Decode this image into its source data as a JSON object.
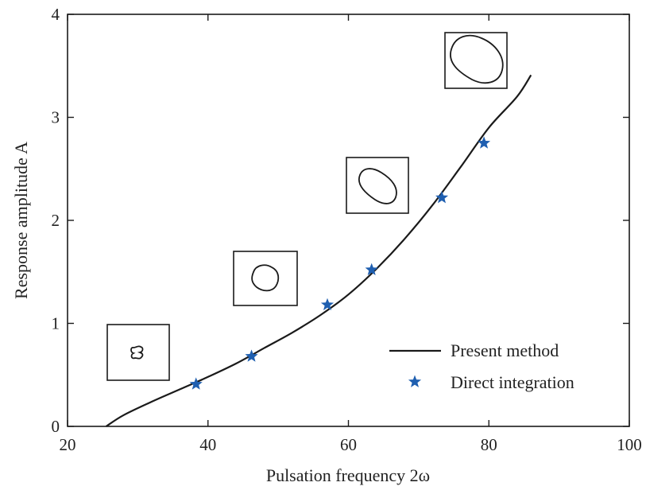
{
  "chart_data": {
    "type": "line",
    "title": "",
    "xlabel": "Pulsation frequency 2ω",
    "ylabel": "Response amplitude A",
    "xlim": [
      20,
      100
    ],
    "ylim": [
      0,
      4
    ],
    "xticks": [
      20,
      40,
      60,
      80,
      100
    ],
    "yticks": [
      0,
      1,
      2,
      3,
      4
    ],
    "grid": false,
    "legend": "bottom-right",
    "series": [
      {
        "name": "Present method",
        "style": "line",
        "color": "#1a1a1a",
        "x": [
          25.5,
          28,
          32,
          36,
          40,
          44,
          48,
          52,
          56,
          60,
          64,
          68,
          72,
          76,
          80,
          84,
          86
        ],
        "y": [
          0.0,
          0.11,
          0.24,
          0.36,
          0.48,
          0.61,
          0.76,
          0.91,
          1.08,
          1.28,
          1.53,
          1.82,
          2.15,
          2.52,
          2.9,
          3.2,
          3.41
        ]
      },
      {
        "name": "Direct integration",
        "style": "marker",
        "color": "#1f5fb0",
        "x": [
          38.3,
          46.2,
          57.0,
          63.3,
          73.3,
          79.3
        ],
        "y": [
          0.41,
          0.68,
          1.18,
          1.52,
          2.22,
          2.75
        ]
      }
    ],
    "inset_phase_portraits": 4
  }
}
